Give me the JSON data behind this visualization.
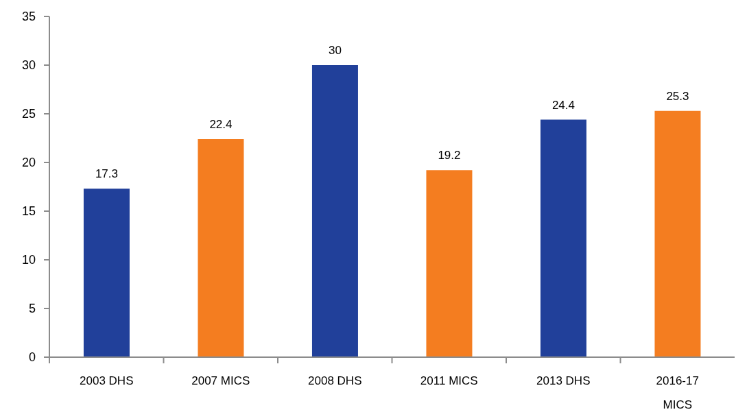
{
  "chart_data": {
    "type": "bar",
    "categories": [
      "2003 DHS",
      "2007 MICS",
      "2008 DHS",
      "2011 MICS",
      "2013 DHS",
      "2016-17 MICS"
    ],
    "values": [
      17.3,
      22.4,
      30,
      19.2,
      24.4,
      25.3
    ],
    "colors": [
      "#21409a",
      "#f47d20",
      "#21409a",
      "#f47d20",
      "#21409a",
      "#f47d20"
    ],
    "ylim": [
      0,
      35
    ],
    "yticks": [
      0,
      5,
      10,
      15,
      20,
      25,
      30,
      35
    ],
    "data_labels": true
  }
}
